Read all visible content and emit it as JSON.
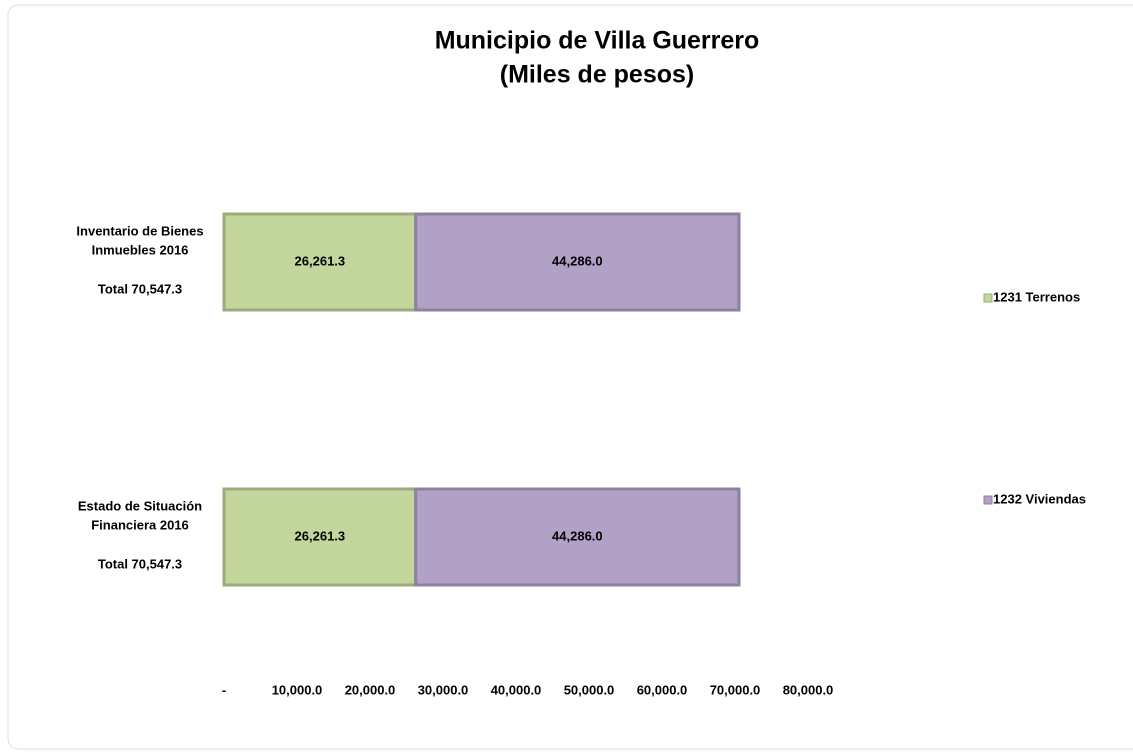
{
  "chart_data": {
    "type": "stacked-barh",
    "title": [
      "Municipio de Villa Guerrero",
      "(Miles de pesos)"
    ],
    "categories": [
      [
        "Inventario de Bienes",
        "Inmuebles 2016"
      ],
      [
        "Estado de Situación",
        "Financiera 2016"
      ]
    ],
    "category_totals": [
      "Total 70,547.3",
      "Total  70,547.3"
    ],
    "series": [
      {
        "name": "1231 Terrenos",
        "color": "#c3d69b",
        "values": [
          26261.3,
          26261.3
        ],
        "value_labels": [
          "26,261.3",
          "26,261.3"
        ]
      },
      {
        "name": "1232 Viviendas",
        "color": "#b2a1c7",
        "values": [
          44286.0,
          44286.0
        ],
        "value_labels": [
          "44,286.0",
          "44,286.0"
        ]
      }
    ],
    "xlim": [
      0,
      80000
    ],
    "xticks": [
      {
        "value": 0,
        "label": "-"
      },
      {
        "value": 10000,
        "label": "10,000.0"
      },
      {
        "value": 20000,
        "label": "20,000.0"
      },
      {
        "value": 30000,
        "label": "30,000.0"
      },
      {
        "value": 40000,
        "label": "40,000.0"
      },
      {
        "value": 50000,
        "label": "50,000.0"
      },
      {
        "value": 60000,
        "label": "60,000.0"
      },
      {
        "value": 70000,
        "label": "70,000.0"
      },
      {
        "value": 80000,
        "label": "80,000.0"
      }
    ],
    "legend": "right"
  }
}
